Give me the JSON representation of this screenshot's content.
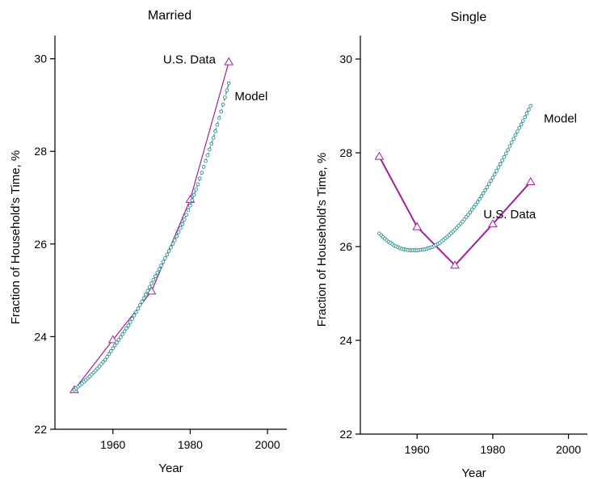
{
  "chart_data": [
    {
      "type": "line",
      "title": "Married",
      "xlabel": "Year",
      "ylabel": "Fraction of Household's Time, %",
      "xlim": [
        1945,
        2005
      ],
      "ylim": [
        22,
        30.5
      ],
      "xticks": [
        1960,
        1980,
        2000
      ],
      "yticks": [
        22,
        24,
        26,
        28,
        30
      ],
      "grid": false,
      "series": [
        {
          "name": "U.S. Data",
          "color": "#a020a0",
          "marker": "triangle",
          "x": [
            1950,
            1960,
            1970,
            1980,
            1990
          ],
          "y": [
            22.85,
            23.93,
            24.98,
            26.96,
            29.93
          ]
        },
        {
          "name": "Model",
          "color": "#2a8f8f",
          "marker": "circle",
          "x": [
            1950,
            1952,
            1954,
            1956,
            1958,
            1960,
            1962,
            1964,
            1966,
            1968,
            1970,
            1972,
            1974,
            1976,
            1978,
            1980,
            1982,
            1984,
            1986,
            1988,
            1990
          ],
          "y": [
            22.85,
            22.99,
            23.14,
            23.31,
            23.5,
            23.75,
            23.99,
            24.24,
            24.53,
            24.83,
            25.15,
            25.46,
            25.77,
            26.08,
            26.43,
            26.83,
            27.29,
            27.79,
            28.29,
            28.86,
            29.47
          ]
        }
      ],
      "annotations": [
        {
          "text": "U.S. Data",
          "x": 1973,
          "y": 29.9
        },
        {
          "text": "Model",
          "x": 1991.5,
          "y": 29.1
        }
      ]
    },
    {
      "type": "line",
      "title": "Single",
      "xlabel": "Year",
      "ylabel": "Fraction of Household's Time, %",
      "xlim": [
        1945,
        2005
      ],
      "ylim": [
        22,
        30.5
      ],
      "xticks": [
        1960,
        1980,
        2000
      ],
      "yticks": [
        22,
        24,
        26,
        28,
        30
      ],
      "grid": false,
      "series": [
        {
          "name": "U.S. Data",
          "color": "#a020a0",
          "marker": "triangle",
          "x": [
            1950,
            1960,
            1970,
            1980,
            1990
          ],
          "y": [
            27.92,
            26.42,
            25.6,
            26.48,
            27.38
          ]
        },
        {
          "name": "Model",
          "color": "#2a8f8f",
          "marker": "circle",
          "x": [
            1950,
            1952,
            1954,
            1956,
            1958,
            1960,
            1962,
            1964,
            1966,
            1968,
            1970,
            1972,
            1974,
            1976,
            1978,
            1980,
            1982,
            1984,
            1986,
            1988,
            1990
          ],
          "y": [
            26.28,
            26.13,
            26.02,
            25.95,
            25.92,
            25.92,
            25.94,
            25.99,
            26.08,
            26.21,
            26.36,
            26.53,
            26.73,
            26.95,
            27.2,
            27.47,
            27.76,
            28.06,
            28.38,
            28.68,
            29.0
          ]
        }
      ],
      "annotations": [
        {
          "text": "Model",
          "x": 1993.5,
          "y": 28.65
        },
        {
          "text": "U.S. Data",
          "x": 1977.5,
          "y": 26.6
        }
      ]
    }
  ]
}
